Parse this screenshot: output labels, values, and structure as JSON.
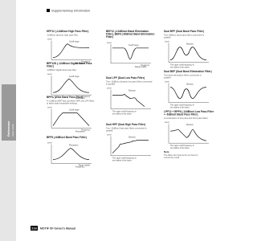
{
  "header": {
    "title": "Supplementary Information"
  },
  "sidebar": {
    "label": "Reference",
    "sublabel": "Voice mode"
  },
  "sections": [
    {
      "title": "HPF12 (-12dB/oct High Pass Filter)",
      "desc": "-12dB/oct dynamic high pass filter.",
      "labels": [
        "Level",
        "Cutoff range",
        "Resonance",
        "Frequency"
      ]
    },
    {
      "title": "BPF12D (-12dB/oct Digital Band Pass Filter)",
      "desc": "-12dB/oct digital band pass filter.",
      "labels": [
        "Level",
        "Cutoff range",
        "Resonance",
        "Frequency"
      ]
    },
    {
      "title": "BPFw (Wide Band Pass Filter)",
      "desc": "A -12dB/oct BPF that combines HPF and LPF filters to allow wider bandwidth settings.",
      "labels": [
        "Level",
        "Cutoff range",
        "Resonance",
        "Frequency"
      ]
    },
    {
      "title": "BPF6 (-6dB/oct Band Pass Filter)",
      "desc": "",
      "labels": [
        "Level",
        "Resonance",
        "Frequency",
        "Range (width)"
      ]
    },
    {
      "title": "BEF12 (-12dB/oct Band Elimination Filter), BEF6 (-6dB/oct Band Elimination Filter)",
      "desc": "",
      "labels": [
        "Level",
        "Cutoff range",
        "Range (width)",
        "Frequency"
      ]
    },
    {
      "title": "Dual LPF (Dual Low Pass Filter)",
      "desc": "Two -12dB/oct dynamic low pass filters connected in parallel.",
      "labels": [
        "Level",
        "Distance",
        "The upper cutoff frequency is set relative to the lower."
      ]
    },
    {
      "title": "Dual HPF (Dual High Pass Filter)",
      "desc": "Two -12dB/oct high pass filters connected in parallel.",
      "labels": [
        "Level",
        "Distance",
        "The upper cutoff frequency is set relative to the lower."
      ]
    },
    {
      "title": "Dual BPF (Dual Band Pass Filter)",
      "desc": "Two -6dB/oct band pass filters connected in parallel.",
      "labels": [
        "Level",
        "Distance",
        "The upper cutoff frequency is set relative to the lower."
      ]
    },
    {
      "title": "Dual BEF (Dual Band Elimination Filter)",
      "desc": "Two band elimination filters connected in parallel.",
      "labels": [
        "Level",
        "Distance",
        "The upper cutoff frequency is set relative to the lower."
      ]
    },
    {
      "title": "LPF12 + BPF6 (-12dB/oct Low Pass Filter + -6dB/oct Band Pass Filter)",
      "desc": "A combination of low pass and band pass filters.",
      "labels": [
        "Level",
        "Distance",
        "The upper cutoff frequency is set relative to the lower."
      ]
    }
  ],
  "note": {
    "title": "Note",
    "text": "The filters are fixed at the oct level to control the cutoff."
  },
  "footer": {
    "page": "216",
    "manual": "MOTIF XF Owner's Manual"
  }
}
